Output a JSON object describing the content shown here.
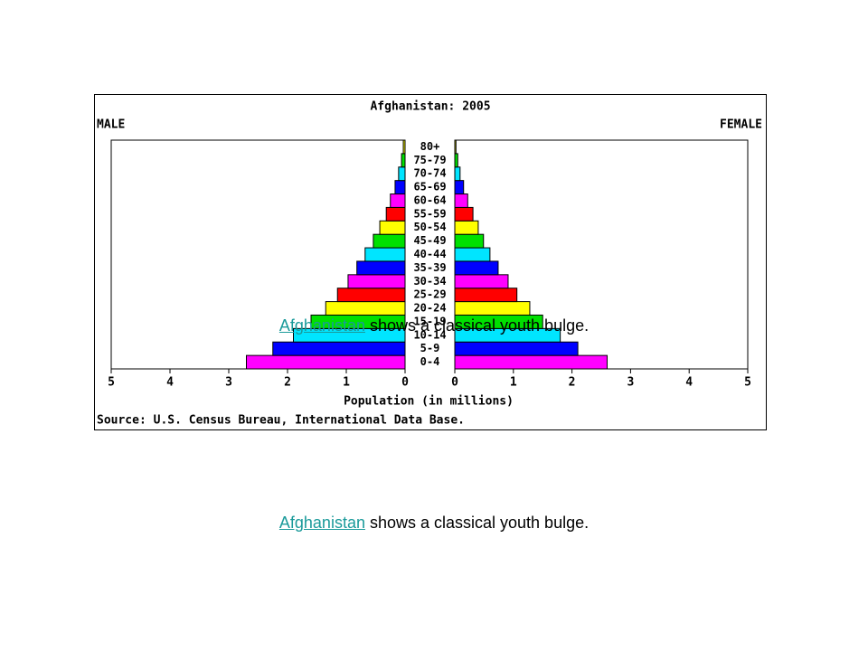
{
  "chart_data": {
    "type": "pyramid",
    "title": "Afghanistan: 2005",
    "xlabel": "Population (in millions)",
    "source": "Source: U.S. Census Bureau, International Data Base.",
    "categories": [
      "0-4",
      "5-9",
      "10-14",
      "15-19",
      "20-24",
      "25-29",
      "30-34",
      "35-39",
      "40-44",
      "45-49",
      "50-54",
      "55-59",
      "60-64",
      "65-69",
      "70-74",
      "75-79",
      "80+"
    ],
    "colors": [
      "#ff00ff",
      "#0000ff",
      "#00e5ff",
      "#00e000",
      "#ffff00",
      "#ff0000",
      "#ff00ff",
      "#0000ff",
      "#00e5ff",
      "#00e000",
      "#ffff00",
      "#ff0000",
      "#ff00ff",
      "#0000ff",
      "#00e5ff",
      "#00e000",
      "#ffff00"
    ],
    "series": [
      {
        "name": "MALE",
        "values": [
          2.7,
          2.25,
          1.9,
          1.6,
          1.35,
          1.15,
          0.97,
          0.82,
          0.68,
          0.54,
          0.43,
          0.32,
          0.25,
          0.17,
          0.11,
          0.06,
          0.03
        ]
      },
      {
        "name": "FEMALE",
        "values": [
          2.6,
          2.1,
          1.8,
          1.5,
          1.28,
          1.06,
          0.91,
          0.74,
          0.6,
          0.49,
          0.4,
          0.31,
          0.22,
          0.15,
          0.09,
          0.05,
          0.02
        ]
      }
    ],
    "xlim": [
      0,
      5
    ],
    "xticks": [
      0,
      1,
      2,
      3,
      4,
      5
    ]
  },
  "caption": {
    "link": "Afghanistan",
    "text": " shows a classical youth bulge."
  }
}
